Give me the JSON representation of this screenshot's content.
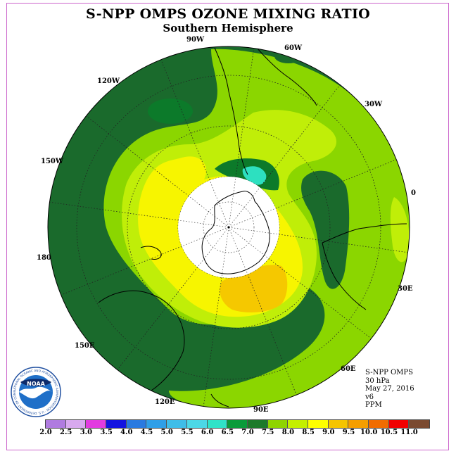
{
  "header": {
    "title": "S-NPP OMPS OZONE MIXING RATIO",
    "subtitle": "Southern Hemisphere"
  },
  "longitude_labels": {
    "lon_90w": "90W",
    "lon_60w": "60W",
    "lon_120w": "120W",
    "lon_30w": "30W",
    "lon_150w": "150W",
    "lon_0": "0",
    "lon_180": "180",
    "lon_30e": "30E",
    "lon_150e": "150E",
    "lon_60e": "60E",
    "lon_120e": "120E",
    "lon_90e": "90E"
  },
  "info": {
    "instrument": "S-NPP OMPS",
    "level": "30 hPa",
    "date": "May 27, 2016",
    "version": "v6",
    "units": "PPM"
  },
  "logo": {
    "text": "NOAA",
    "ring_text": "NATIONAL OCEANIC AND ATMOSPHERIC ADMINISTRATION · U.S. DEPARTMENT OF COMMERCE"
  },
  "colorbar": {
    "ticks": [
      "2.0",
      "2.5",
      "3.0",
      "3.5",
      "4.0",
      "4.5",
      "5.0",
      "5.5",
      "6.0",
      "6.5",
      "7.0",
      "7.5",
      "8.0",
      "8.5",
      "9.0",
      "9.5",
      "10.0",
      "10.5",
      "11.0"
    ],
    "colors": [
      "#b07be0",
      "#d8a9ef",
      "#e23be0",
      "#1414e0",
      "#2a7ae0",
      "#2f9fe8",
      "#3fbde8",
      "#4cd8e6",
      "#2fe3c8",
      "#0a9b3a",
      "#1c7a2a",
      "#8fd400",
      "#c4ef00",
      "#ffff00",
      "#f5c400",
      "#f59e00",
      "#f06c00",
      "#f00000",
      "#7a4a30"
    ]
  },
  "map_colors": {
    "c65": "#0c7a2a",
    "c70": "#1a6a2c",
    "c75": "#8bd600",
    "c80": "#c0ee08",
    "c85": "#f7f500",
    "c90": "#f5c800",
    "c60": "#2de0c0",
    "land_line": "#000000"
  }
}
